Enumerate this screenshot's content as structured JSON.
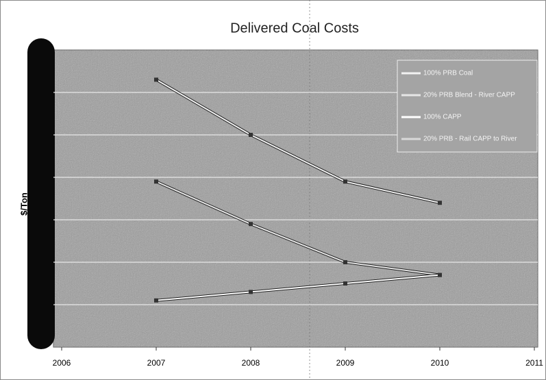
{
  "chart_data": {
    "type": "line",
    "title": "Delivered Coal Costs",
    "y_label": "$/Ton",
    "xlim": [
      2006,
      2011
    ],
    "xticks": [
      2006,
      2007,
      2008,
      2009,
      2010,
      2011
    ],
    "ylim": [
      0,
      7
    ],
    "grid_lines": [
      1,
      2,
      3,
      4,
      5,
      6
    ],
    "grid": true,
    "legend": "top-right",
    "x": [
      2007,
      2008,
      2009,
      2010
    ],
    "series": [
      {
        "name": "100% PRB Coal",
        "color": "#f2f2f2",
        "values": [
          6.3,
          5.0,
          3.9,
          3.4
        ]
      },
      {
        "name": "20% PRB Blend - River CAPP",
        "color": "#e6e6e6",
        "values": [
          3.9,
          2.9,
          2.0,
          1.7
        ]
      },
      {
        "name": "100% CAPP",
        "color": "#ffffff",
        "values": [
          1.1,
          1.3,
          1.5,
          1.7
        ]
      },
      {
        "name": "20% PRB - Rail CAPP to River",
        "color": "#d9d9d9",
        "values": [
          null,
          null,
          null,
          null
        ]
      }
    ]
  }
}
